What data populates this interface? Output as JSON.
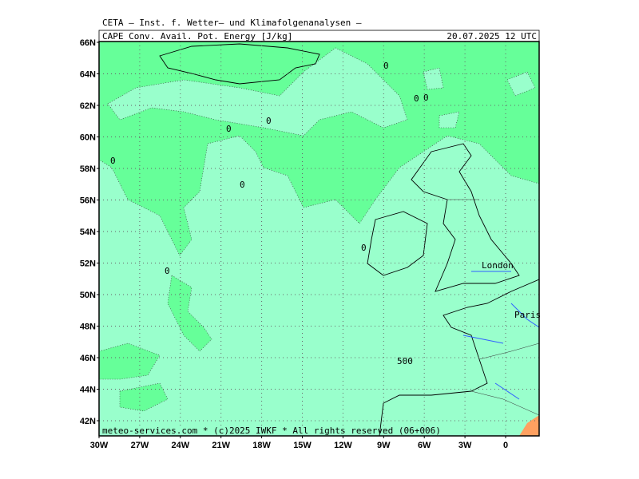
{
  "header": {
    "institute": "CETA — Inst. f. Wetter— und Klimafolgenanalysen —",
    "product": "CAPE Conv. Avail. Pot. Energy [J/kg]",
    "datetime": "20.07.2025 12 UTC"
  },
  "axes": {
    "lat_labels": [
      "66N",
      "64N",
      "62N",
      "60N",
      "58N",
      "56N",
      "54N",
      "52N",
      "50N",
      "48N",
      "46N",
      "44N",
      "42N"
    ],
    "lon_labels": [
      "30W",
      "27W",
      "24W",
      "21W",
      "18W",
      "15W",
      "12W",
      "9W",
      "6W",
      "3W",
      "0"
    ]
  },
  "contour_labels": [
    "0",
    "0",
    "0",
    "0",
    "0",
    "0",
    "0",
    "0",
    "0",
    "500"
  ],
  "cities": [
    "London",
    "Paris"
  ],
  "footer": "meteo-services.com * (c)2025 IWKF * All rights reserved (06+006)"
}
